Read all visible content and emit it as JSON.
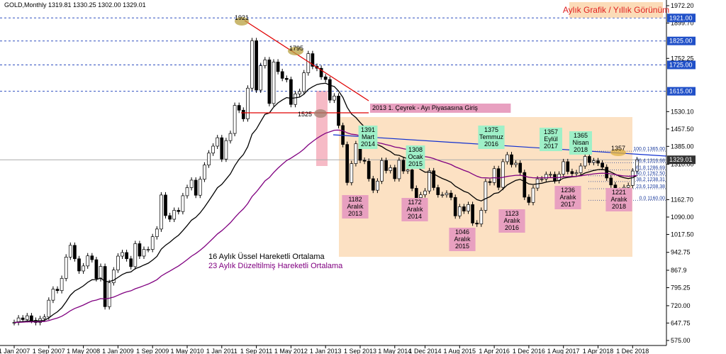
{
  "chart_data": {
    "type": "candlestick",
    "title": "Aylık Grafik / Yıllık Görünüm",
    "symbol_header": "GOLD,Monthly  1319.81 1330.25 1302.00 1329.01",
    "legend": [
      "16 Aylık Üssel Hareketli Ortalama",
      "23 Aylık Düzeltilmiş Hareketli Ortalama"
    ],
    "ma_colors": [
      "#000000",
      "#800080"
    ],
    "up_color": "#ffffff",
    "down_color": "#000000",
    "values": [
      650,
      669,
      662,
      678,
      659,
      650,
      666,
      673,
      743,
      789,
      783,
      834,
      923,
      972,
      916,
      865,
      886,
      928,
      912,
      833,
      884,
      716,
      816,
      869,
      927,
      942,
      916,
      883,
      979,
      927,
      955,
      955,
      1008,
      1040,
      1182,
      1096,
      1081,
      1118,
      1113,
      1179,
      1213,
      1244,
      1181,
      1248,
      1307,
      1357,
      1386,
      1421,
      1332,
      1409,
      1439,
      1556,
      1536,
      1500,
      1628,
      1826,
      1620,
      1722,
      1746,
      1564,
      1737,
      1697,
      1669,
      1664,
      1560,
      1604,
      1614,
      1692,
      1772,
      1719,
      1711,
      1675,
      1664,
      1578,
      1595,
      1472,
      1393,
      1234,
      1313,
      1396,
      1327,
      1323,
      1250,
      1202,
      1240,
      1326,
      1284,
      1296,
      1250,
      1327,
      1282,
      1287,
      1210,
      1171,
      1183,
      1199,
      1283,
      1213,
      1183,
      1183,
      1190,
      1172,
      1095,
      1133,
      1115,
      1142,
      1065,
      1061,
      1118,
      1238,
      1234,
      1292,
      1214,
      1321,
      1350,
      1309,
      1315,
      1276,
      1173,
      1151,
      1211,
      1249,
      1249,
      1268,
      1268,
      1242,
      1269,
      1321,
      1280,
      1271,
      1275,
      1303,
      1343,
      1318,
      1325,
      1315,
      1298,
      1253,
      1224,
      1201,
      1192,
      1214,
      1222,
      1282,
      1329
    ],
    "ylim": [
      554,
      1987
    ],
    "yticks": [
      {
        "value": 1972.2,
        "label": "1972.20"
      },
      {
        "value": 1899.7,
        "label": "1899.70"
      },
      {
        "value": 1752.25,
        "label": "1752.25"
      },
      {
        "value": 1530.1,
        "label": "1530.10"
      },
      {
        "value": 1457.5,
        "label": "1457.50"
      },
      {
        "value": 1385,
        "label": "1385.00"
      },
      {
        "value": 1310,
        "label": "1310.00"
      },
      {
        "value": 1162.7,
        "label": "1162.70"
      },
      {
        "value": 1090,
        "label": "1090.00"
      },
      {
        "value": 1017.5,
        "label": "1017.50"
      },
      942.75,
      867.9,
      795.25,
      {
        "value": 720,
        "label": "720.00"
      },
      647.75,
      {
        "value": 575,
        "label": "575.00"
      }
    ],
    "xticks": [
      "1 Jan 2007",
      "1 Sep 2007",
      "1 May 2008",
      "1 Jan 2009",
      "1 Sep 2009",
      "1 May 2010",
      "1 Jan 2011",
      "1 Sep 2011",
      "1 May 2012",
      "1 Jan 2013",
      "1 Sep 2013",
      "1 May 2014",
      "1 Dec 2014",
      "1 Aug 2015",
      "1 Apr 2016",
      "1 Dec 2016",
      "1 Aug 2017",
      "1 Apr 2018",
      "1 Dec 2018"
    ],
    "levels": [
      {
        "value": 1921,
        "label": "1921.00"
      },
      {
        "value": 1825,
        "label": "1825.00"
      },
      {
        "value": 1725,
        "label": "1725.00"
      },
      {
        "value": 1615,
        "label": "1615.00"
      }
    ],
    "current_price": 1329.01,
    "fib": [
      {
        "value": 1365,
        "label": "100.0 1365.00"
      },
      {
        "value": 1316.68,
        "label": "76.4 1316.68"
      },
      {
        "value": 1286.69,
        "label": "61.8 1286.69"
      },
      {
        "value": 1262.5,
        "label": "50.0 1262.50"
      },
      {
        "value": 1238.31,
        "label": "38.2 1238.31"
      },
      {
        "value": 1208.38,
        "label": "23.6 1208.38"
      },
      {
        "value": 1160,
        "label": "0.0 1160.00"
      }
    ],
    "notes": [
      [
        "1921"
      ],
      [
        "1795"
      ],
      [
        "1525"
      ],
      [
        "2013 1. Çeyrek - Ayı Piyasasına Giriş"
      ],
      [
        "1391",
        "Mart",
        "2014"
      ],
      [
        "1308",
        "Ocak",
        "2015"
      ],
      [
        "1375",
        "Temmuz",
        "2016"
      ],
      [
        "1357",
        "Eylül",
        "2017"
      ],
      [
        "1365",
        "Nisan",
        "2018"
      ],
      [
        "1357"
      ],
      [
        "1182",
        "Aralık",
        "2013"
      ],
      [
        "1172",
        "Aralık",
        "2014"
      ],
      [
        "1046",
        "Aralık",
        "2015"
      ],
      [
        "1123",
        "Aralık",
        "2016"
      ],
      [
        "1236",
        "Aralık",
        "2017"
      ],
      [
        "1221",
        "Aralık",
        "2018"
      ]
    ]
  }
}
